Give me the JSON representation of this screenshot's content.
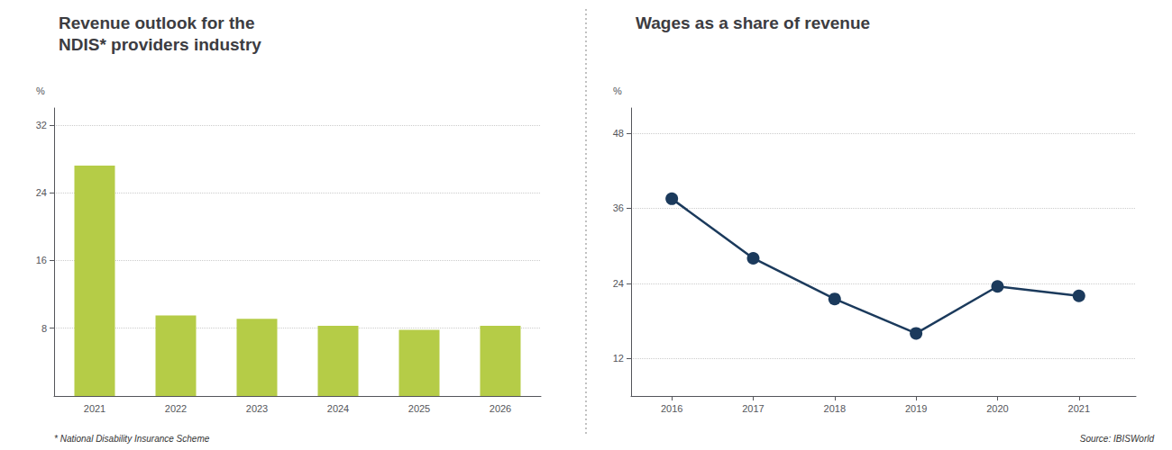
{
  "chart_data": [
    {
      "type": "bar",
      "title": "Revenue outlook for the\nNDIS* providers industry",
      "y_label": "%",
      "categories": [
        "2021",
        "2022",
        "2023",
        "2024",
        "2025",
        "2026"
      ],
      "values": [
        27.2,
        9.5,
        9.1,
        8.3,
        7.8,
        8.3
      ],
      "color": "#b5cc47",
      "ylim": [
        0,
        34
      ],
      "yticks": [
        8,
        16,
        24,
        32
      ],
      "grid": true,
      "annotations": [
        "* National Disability Insurance Scheme"
      ]
    },
    {
      "type": "line",
      "title": "Wages as a share of revenue",
      "y_label": "%",
      "x": [
        2016,
        2017,
        2018,
        2019,
        2020,
        2021
      ],
      "values": [
        37.5,
        28.0,
        21.5,
        16.0,
        23.5,
        22.0
      ],
      "color": "#1b3a5c",
      "marker": "circle",
      "xlim": [
        2015.5,
        2021.7
      ],
      "xticks": [
        2016,
        2017,
        2018,
        2019,
        2020,
        2021
      ],
      "ylim": [
        6,
        52
      ],
      "yticks": [
        12,
        24,
        36,
        48
      ],
      "grid": true,
      "annotations": [
        "Source: IBISWorld"
      ]
    }
  ]
}
